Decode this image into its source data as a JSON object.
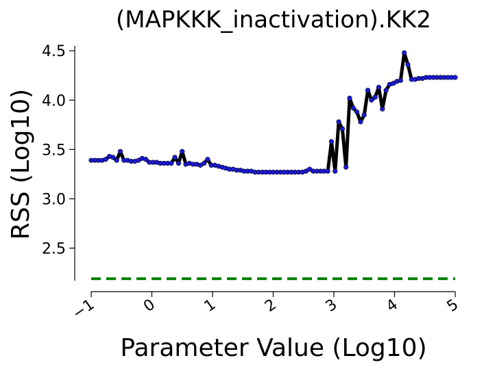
{
  "chart_data": {
    "type": "line",
    "title": "(MAPKKK_inactivation).KK2",
    "xlabel": "Parameter Value (Log10)",
    "ylabel": "RSS (Log10)",
    "xlim": [
      -1,
      5
    ],
    "ylim": [
      2.17,
      4.55
    ],
    "xticks": [
      -1,
      0,
      1,
      2,
      3,
      4,
      5
    ],
    "xtick_labels": [
      "−1",
      "0",
      "1",
      "2",
      "3",
      "4",
      "5"
    ],
    "yticks": [
      2.5,
      3.0,
      3.5,
      4.0,
      4.5
    ],
    "ytick_labels": [
      "2.5",
      "3.0",
      "3.5",
      "4.0",
      "4.5"
    ],
    "grid": false,
    "series": [
      {
        "color": "#000000",
        "marker_color": "#1a1adb",
        "x": [
          -1.0,
          -0.94,
          -0.88,
          -0.82,
          -0.76,
          -0.7,
          -0.64,
          -0.58,
          -0.52,
          -0.46,
          -0.4,
          -0.34,
          -0.28,
          -0.22,
          -0.16,
          -0.1,
          -0.04,
          0.02,
          0.08,
          0.14,
          0.2,
          0.26,
          0.32,
          0.38,
          0.44,
          0.5,
          0.56,
          0.62,
          0.68,
          0.74,
          0.8,
          0.86,
          0.92,
          0.98,
          1.04,
          1.1,
          1.16,
          1.22,
          1.28,
          1.34,
          1.4,
          1.46,
          1.52,
          1.58,
          1.64,
          1.7,
          1.76,
          1.82,
          1.88,
          1.94,
          2.0,
          2.06,
          2.12,
          2.18,
          2.24,
          2.3,
          2.36,
          2.42,
          2.48,
          2.54,
          2.6,
          2.66,
          2.72,
          2.78,
          2.84,
          2.9,
          2.96,
          3.02,
          3.08,
          3.14,
          3.2,
          3.26,
          3.32,
          3.38,
          3.44,
          3.5,
          3.56,
          3.62,
          3.68,
          3.74,
          3.8,
          3.86,
          3.92,
          3.98,
          4.04,
          4.1,
          4.16,
          4.22,
          4.28,
          4.34,
          4.4,
          4.46,
          4.52,
          4.58,
          4.64,
          4.7,
          4.76,
          4.82,
          4.88,
          4.94,
          5.0
        ],
        "y": [
          3.39,
          3.39,
          3.39,
          3.39,
          3.4,
          3.43,
          3.42,
          3.39,
          3.48,
          3.39,
          3.39,
          3.38,
          3.38,
          3.39,
          3.41,
          3.4,
          3.37,
          3.37,
          3.37,
          3.36,
          3.36,
          3.36,
          3.36,
          3.42,
          3.36,
          3.48,
          3.35,
          3.36,
          3.35,
          3.35,
          3.34,
          3.36,
          3.4,
          3.34,
          3.34,
          3.33,
          3.32,
          3.31,
          3.3,
          3.3,
          3.29,
          3.29,
          3.28,
          3.28,
          3.28,
          3.27,
          3.27,
          3.27,
          3.27,
          3.27,
          3.27,
          3.27,
          3.27,
          3.27,
          3.27,
          3.27,
          3.27,
          3.27,
          3.27,
          3.28,
          3.3,
          3.28,
          3.28,
          3.28,
          3.28,
          3.28,
          3.58,
          3.28,
          3.78,
          3.71,
          3.32,
          4.02,
          3.92,
          3.88,
          3.78,
          3.85,
          4.1,
          4.0,
          4.03,
          4.13,
          3.91,
          4.1,
          4.16,
          4.17,
          4.19,
          4.2,
          4.48,
          4.36,
          4.21,
          4.21,
          4.22,
          4.22,
          4.23,
          4.23,
          4.23,
          4.23,
          4.23,
          4.23,
          4.23,
          4.23,
          4.23
        ]
      }
    ],
    "reference_line": {
      "y": 2.19,
      "color": "#008000",
      "style": "dashed"
    }
  }
}
